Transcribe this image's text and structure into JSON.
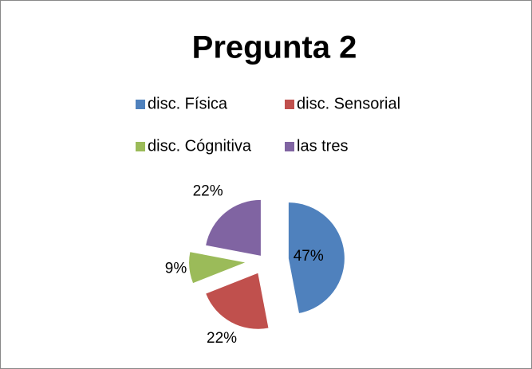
{
  "chart_data": {
    "type": "pie",
    "title": "Pregunta 2",
    "categories": [
      "disc. Física",
      "disc. Sensorial",
      "disc. Cógnitiva",
      "las tres"
    ],
    "values": [
      47,
      22,
      9,
      22
    ],
    "value_labels": [
      "47%",
      "22%",
      "9%",
      "22%"
    ],
    "colors": [
      "#4f81bd",
      "#c0504d",
      "#9bbb59",
      "#8064a2"
    ],
    "legend": "top"
  }
}
